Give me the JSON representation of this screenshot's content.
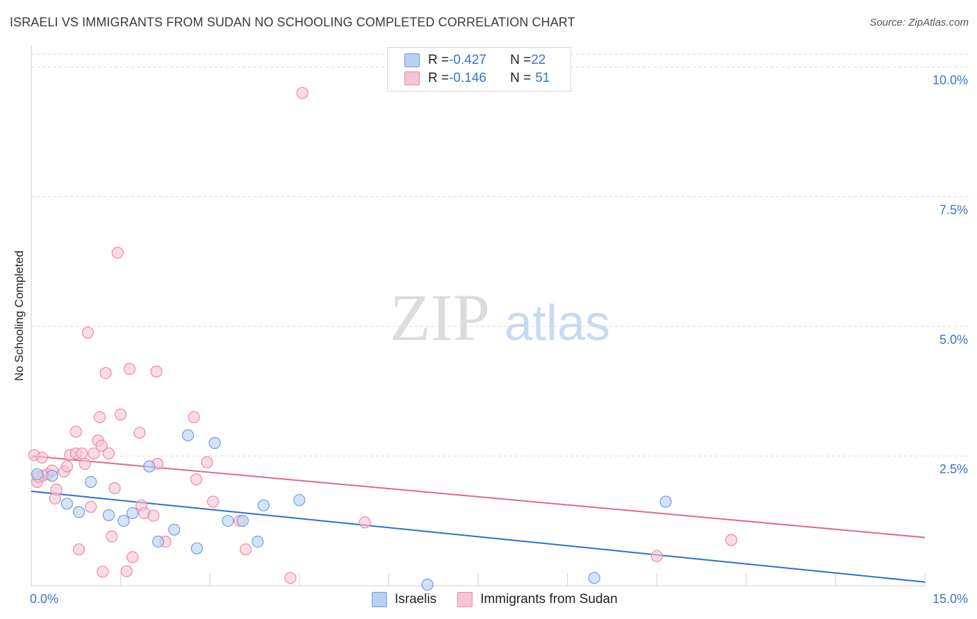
{
  "title": "ISRAELI VS IMMIGRANTS FROM SUDAN NO SCHOOLING COMPLETED CORRELATION CHART",
  "source": "Source: ZipAtlas.com",
  "watermark": {
    "zip": "ZIP",
    "atlas": "atlas"
  },
  "colors": {
    "blue_fill": "#b9d0f3",
    "blue_stroke": "#6f9ee0",
    "blue_line": "#2a6fd0",
    "pink_fill": "#f8c3d4",
    "pink_stroke": "#eb8aa9",
    "pink_line": "#e0678f",
    "axis_text": "#3a74d0",
    "grid": "#d9d9d9"
  },
  "legend": {
    "rows": [
      {
        "r_label": "R = ",
        "r_value": "-0.427",
        "n_label": "N = ",
        "n_value": "22"
      },
      {
        "r_label": "R = ",
        "r_value": "-0.146",
        "n_label": "N = ",
        "n_value": "51"
      }
    ]
  },
  "bottom_legend": [
    "Israelis",
    "Immigrants from Sudan"
  ],
  "chart_data": {
    "type": "scatter",
    "title": "ISRAELI VS IMMIGRANTS FROM SUDAN NO SCHOOLING COMPLETED CORRELATION CHART",
    "xlabel": "",
    "ylabel": "No Schooling Completed",
    "xlim": [
      0,
      15
    ],
    "ylim": [
      0,
      10.25
    ],
    "x_tick_labels": [
      {
        "value": 0,
        "label": "0.0%"
      },
      {
        "value": 15,
        "label": "15.0%"
      }
    ],
    "y_tick_labels": [
      {
        "value": 2.5,
        "label": "2.5%"
      },
      {
        "value": 5.0,
        "label": "5.0%"
      },
      {
        "value": 7.5,
        "label": "7.5%"
      },
      {
        "value": 10.0,
        "label": "10.0%"
      }
    ],
    "series": [
      {
        "name": "Israelis",
        "color": "#b9d0f3",
        "r": -0.427,
        "n": 22,
        "trend": {
          "x": [
            0,
            15
          ],
          "y": [
            1.82,
            0.07
          ]
        },
        "points": [
          [
            0.1,
            2.15
          ],
          [
            0.35,
            2.12
          ],
          [
            0.6,
            1.58
          ],
          [
            0.8,
            1.42
          ],
          [
            1.0,
            2.0
          ],
          [
            1.3,
            1.36
          ],
          [
            1.55,
            1.25
          ],
          [
            1.7,
            1.4
          ],
          [
            1.98,
            2.3
          ],
          [
            2.13,
            0.85
          ],
          [
            2.4,
            1.08
          ],
          [
            2.63,
            2.9
          ],
          [
            2.78,
            0.72
          ],
          [
            3.08,
            2.75
          ],
          [
            3.3,
            1.25
          ],
          [
            3.55,
            1.25
          ],
          [
            3.8,
            0.85
          ],
          [
            3.9,
            1.55
          ],
          [
            4.5,
            1.65
          ],
          [
            6.65,
            0.02
          ],
          [
            9.45,
            0.15
          ],
          [
            10.65,
            1.62
          ]
        ]
      },
      {
        "name": "Immigrants from Sudan",
        "color": "#f8c3d4",
        "r": -0.146,
        "n": 51,
        "trend": {
          "x": [
            0,
            15
          ],
          "y": [
            2.5,
            0.93
          ]
        },
        "points": [
          [
            0.05,
            2.52
          ],
          [
            0.1,
            2.0
          ],
          [
            0.18,
            2.47
          ],
          [
            0.2,
            2.12
          ],
          [
            0.28,
            2.15
          ],
          [
            0.35,
            2.22
          ],
          [
            0.42,
            1.85
          ],
          [
            0.4,
            1.68
          ],
          [
            0.55,
            2.2
          ],
          [
            0.6,
            2.3
          ],
          [
            0.65,
            2.52
          ],
          [
            0.75,
            2.55
          ],
          [
            0.75,
            2.97
          ],
          [
            0.8,
            0.7
          ],
          [
            0.85,
            2.55
          ],
          [
            0.9,
            2.35
          ],
          [
            0.95,
            4.88
          ],
          [
            1.0,
            1.52
          ],
          [
            1.05,
            2.55
          ],
          [
            1.12,
            2.8
          ],
          [
            1.15,
            3.25
          ],
          [
            1.18,
            2.7
          ],
          [
            1.2,
            0.27
          ],
          [
            1.25,
            4.1
          ],
          [
            1.3,
            2.55
          ],
          [
            1.35,
            0.95
          ],
          [
            1.4,
            1.88
          ],
          [
            1.45,
            6.42
          ],
          [
            1.5,
            3.3
          ],
          [
            1.6,
            0.28
          ],
          [
            1.65,
            4.18
          ],
          [
            1.7,
            0.55
          ],
          [
            1.82,
            2.95
          ],
          [
            1.85,
            1.55
          ],
          [
            1.9,
            1.4
          ],
          [
            2.05,
            1.35
          ],
          [
            2.1,
            4.13
          ],
          [
            2.12,
            2.35
          ],
          [
            2.25,
            0.85
          ],
          [
            2.73,
            3.25
          ],
          [
            2.77,
            2.05
          ],
          [
            2.95,
            2.38
          ],
          [
            3.05,
            1.62
          ],
          [
            3.5,
            1.25
          ],
          [
            3.6,
            0.7
          ],
          [
            4.35,
            0.15
          ],
          [
            4.55,
            9.5
          ],
          [
            5.6,
            1.22
          ],
          [
            10.5,
            0.57
          ],
          [
            11.75,
            0.88
          ],
          [
            0.12,
            2.1
          ]
        ]
      }
    ]
  }
}
